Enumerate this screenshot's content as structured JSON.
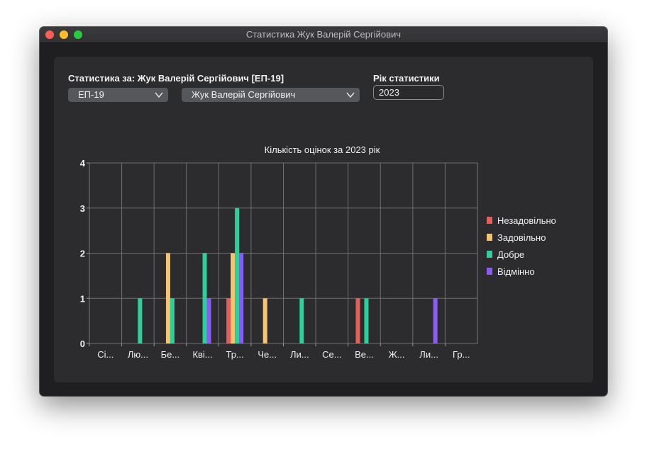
{
  "window": {
    "title": "Статистика Жук Валерій Сергійович"
  },
  "header": {
    "stats_label": "Статистика за: Жук Валерій Сергійович [ЕП-19]",
    "year_label": "Рік статистики"
  },
  "controls": {
    "group_select": "ЕП-19",
    "student_select": "Жук Валерій Сергійович",
    "year_value": "2023"
  },
  "icons": {
    "close": "close-icon",
    "minimize": "minimize-icon",
    "maximize": "maximize-icon",
    "dropdown": "chevron-down-icon"
  },
  "colors": {
    "series": [
      "#e0605a",
      "#f6c46e",
      "#2ecf9b",
      "#8a5cf6"
    ]
  },
  "chart_data": {
    "type": "bar",
    "title": "Кількість оцінок за 2023 рік",
    "categories": [
      "Сі...",
      "Лю...",
      "Бе...",
      "Кві...",
      "Тр...",
      "Че...",
      "Ли...",
      "Се...",
      "Ве...",
      "Ж...",
      "Ли...",
      "Гр..."
    ],
    "series": [
      {
        "name": "Незадовільно",
        "values": [
          0,
          0,
          0,
          0,
          1,
          0,
          0,
          0,
          1,
          0,
          0,
          0
        ]
      },
      {
        "name": "Задовільно",
        "values": [
          0,
          0,
          2,
          0,
          2,
          1,
          0,
          0,
          0,
          0,
          0,
          0
        ]
      },
      {
        "name": "Добре",
        "values": [
          0,
          1,
          1,
          2,
          3,
          0,
          1,
          0,
          1,
          0,
          0,
          0
        ]
      },
      {
        "name": "Відмінно",
        "values": [
          0,
          0,
          0,
          1,
          2,
          0,
          0,
          0,
          0,
          0,
          1,
          0
        ]
      }
    ],
    "ylim": [
      0,
      4
    ],
    "yticks": [
      0,
      1,
      2,
      3,
      4
    ],
    "grid": true,
    "legend": "right"
  }
}
